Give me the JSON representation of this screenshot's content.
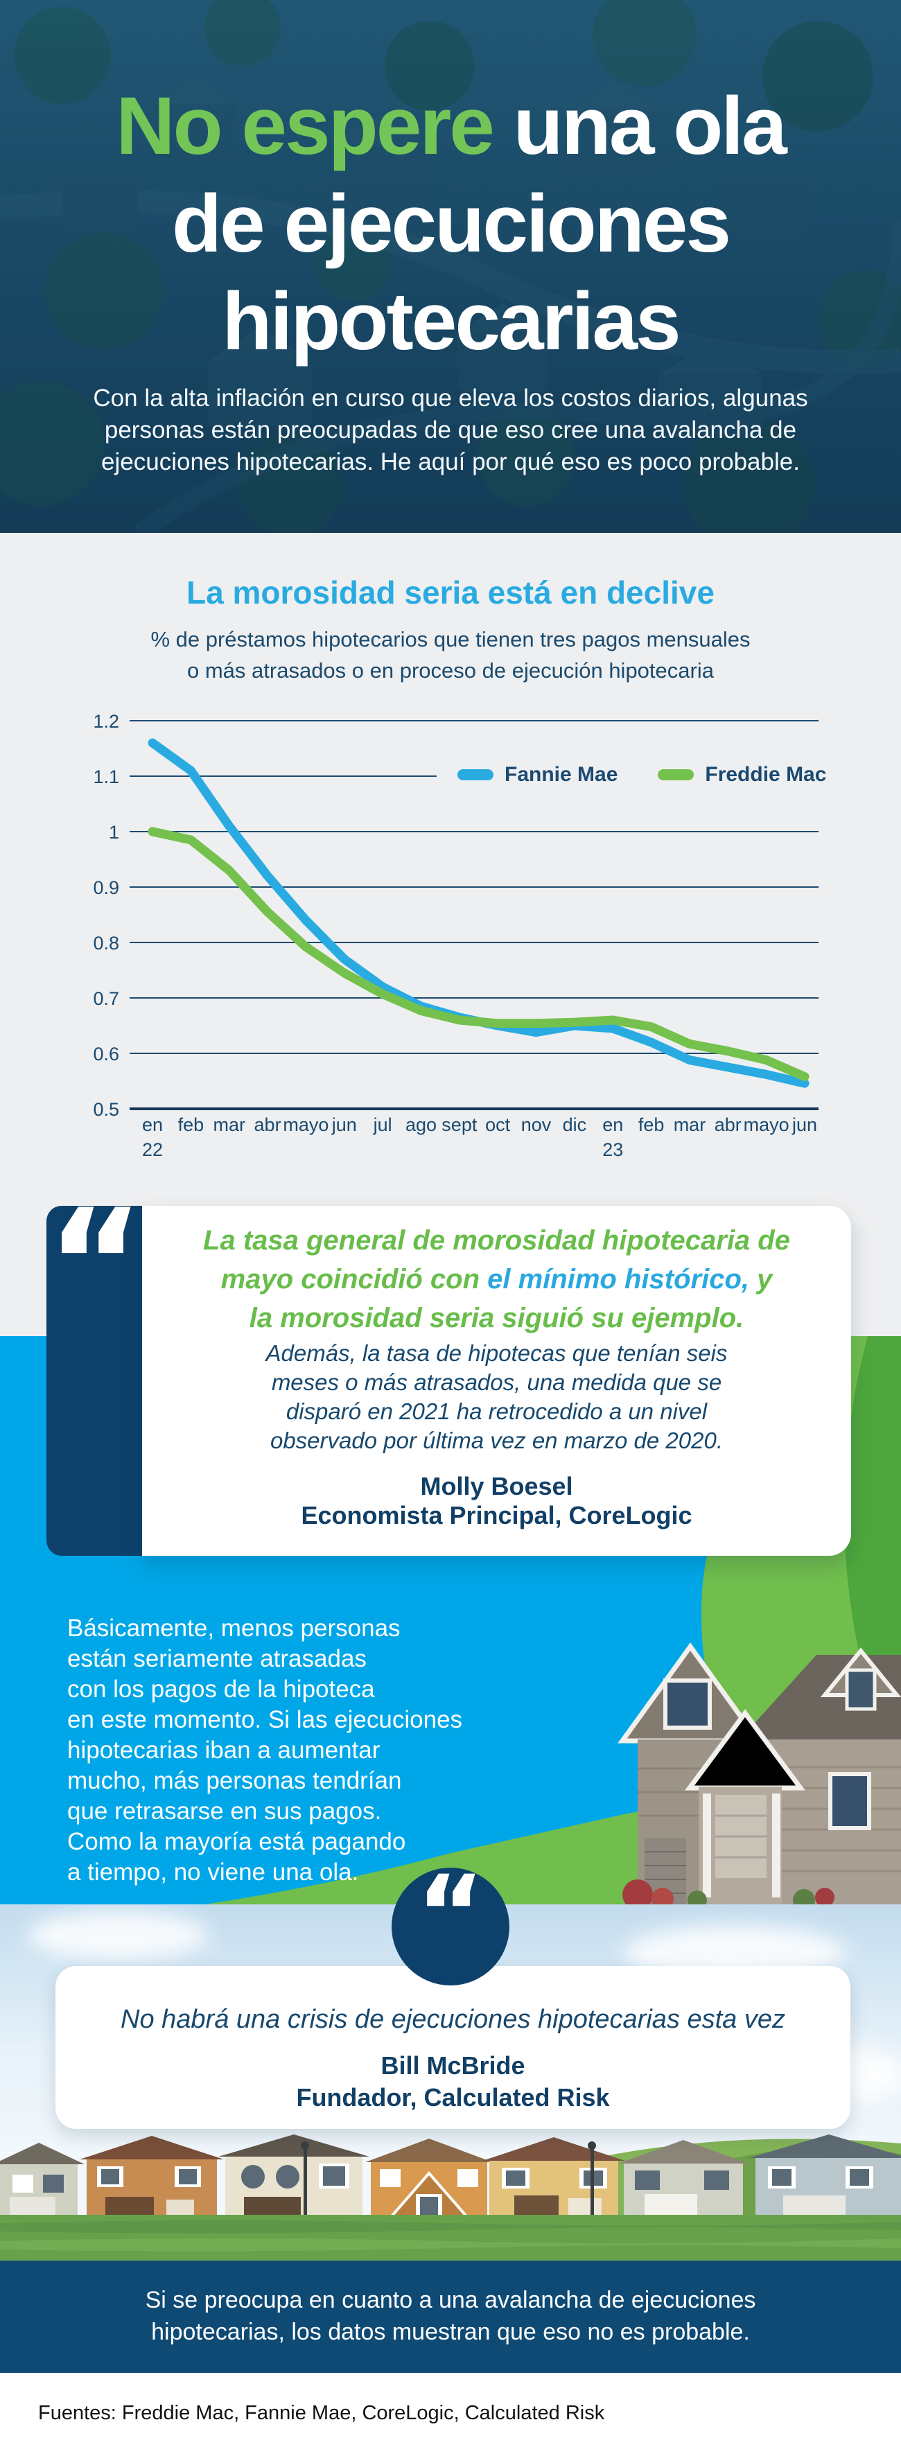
{
  "hero": {
    "title_line1_highlight": "No espere",
    "title_line1_rest": " una ola",
    "title_line2": "de ejecuciones",
    "title_line3": "hipotecarias",
    "subtitle_lines": [
      "Con la alta inflación en curso que eleva los costos diarios, algunas",
      "personas están preocupadas de que eso cree una avalancha de",
      "ejecuciones hipotecarias. He aquí por qué eso es poco probable."
    ]
  },
  "chart_section": {
    "title": "La morosidad seria está en declive",
    "subtitle_lines": [
      "% de préstamos hipotecarios que tienen tres pagos mensuales",
      "o más atrasados o en proceso de ejecución hipotecaria"
    ]
  },
  "chart_data": {
    "type": "line",
    "title": "La morosidad seria está en declive",
    "x_tick_labels": [
      "en",
      "feb",
      "mar",
      "abr",
      "mayo",
      "jun",
      "jul",
      "ago",
      "sept",
      "oct",
      "nov",
      "dic",
      "en",
      "feb",
      "mar",
      "abr",
      "mayo",
      "jun"
    ],
    "x_year_labels": [
      {
        "index": 0,
        "label": "22"
      },
      {
        "index": 12,
        "label": "23"
      }
    ],
    "ytick_labels": [
      "1.2",
      "1.1",
      "1",
      "0.9",
      "0.8",
      "0.7",
      "0.6",
      "0.5"
    ],
    "ylim": [
      0.5,
      1.2
    ],
    "grid": true,
    "legend_position": "upper right",
    "series": [
      {
        "name": "Fannie Mae",
        "color": "#29abe2",
        "values": [
          1.16,
          1.11,
          1.01,
          0.92,
          0.84,
          0.77,
          0.72,
          0.685,
          0.665,
          0.65,
          0.638,
          0.65,
          0.645,
          0.62,
          0.588,
          0.575,
          0.562,
          0.546
        ]
      },
      {
        "name": "Freddie Mac",
        "color": "#74c14d",
        "values": [
          1.0,
          0.985,
          0.93,
          0.855,
          0.792,
          0.745,
          0.707,
          0.677,
          0.66,
          0.654,
          0.654,
          0.656,
          0.66,
          0.648,
          0.617,
          0.604,
          0.588,
          0.558
        ]
      }
    ]
  },
  "quote1": {
    "quote_mark": "“",
    "green_line1": "La tasa general de morosidad hipotecaria de",
    "green_line2_pre": "mayo coincidió con ",
    "green_line2_highlight": "el mínimo histórico,",
    "green_line2_post": " y",
    "green_line3": "la morosidad seria siguió su ejemplo.",
    "body_lines": [
      "Además, la tasa de hipotecas que tenían seis",
      "meses o más atrasados, una medida que se",
      "disparó en 2021 ha retrocedido a un nivel",
      "observado por última vez en marzo de 2020."
    ],
    "author": "Molly Boesel",
    "role": "Economista Principal, CoreLogic"
  },
  "blue_section": {
    "lines": [
      "Básicamente, menos personas",
      "están seriamente atrasadas",
      "con los pagos de la hipoteca",
      "en este momento. Si las ejecuciones",
      "hipotecarias iban a aumentar",
      "mucho, más personas tendrían",
      "que retrasarse en sus pagos.",
      "Como la mayoría está pagando",
      "a tiempo, no viene una ola."
    ]
  },
  "quote2": {
    "quote_mark": "“",
    "text": "No habrá una crisis de ejecuciones hipotecarias esta vez",
    "author": "Bill McBride",
    "role": "Fundador, Calculated Risk"
  },
  "footer": {
    "banner_lines": [
      "Si se preocupa en cuanto a una avalancha de ejecuciones",
      "hipotecarias, los datos muestran que eso no es probable."
    ],
    "sources": "Fuentes: Freddie Mac, Fannie Mae, CoreLogic, Calculated Risk"
  },
  "colors": {
    "brand_green": "#74c558",
    "brand_cyan": "#29abe2",
    "bright_blue_bg": "#00a7e8",
    "light_green_bg": "#71be4d",
    "dark_green_bg": "#4ea73c",
    "navy": "#0d416b",
    "footer_navy": "#0e4a74",
    "text_navy": "#17486e",
    "section_gray": "#eeeff0"
  }
}
